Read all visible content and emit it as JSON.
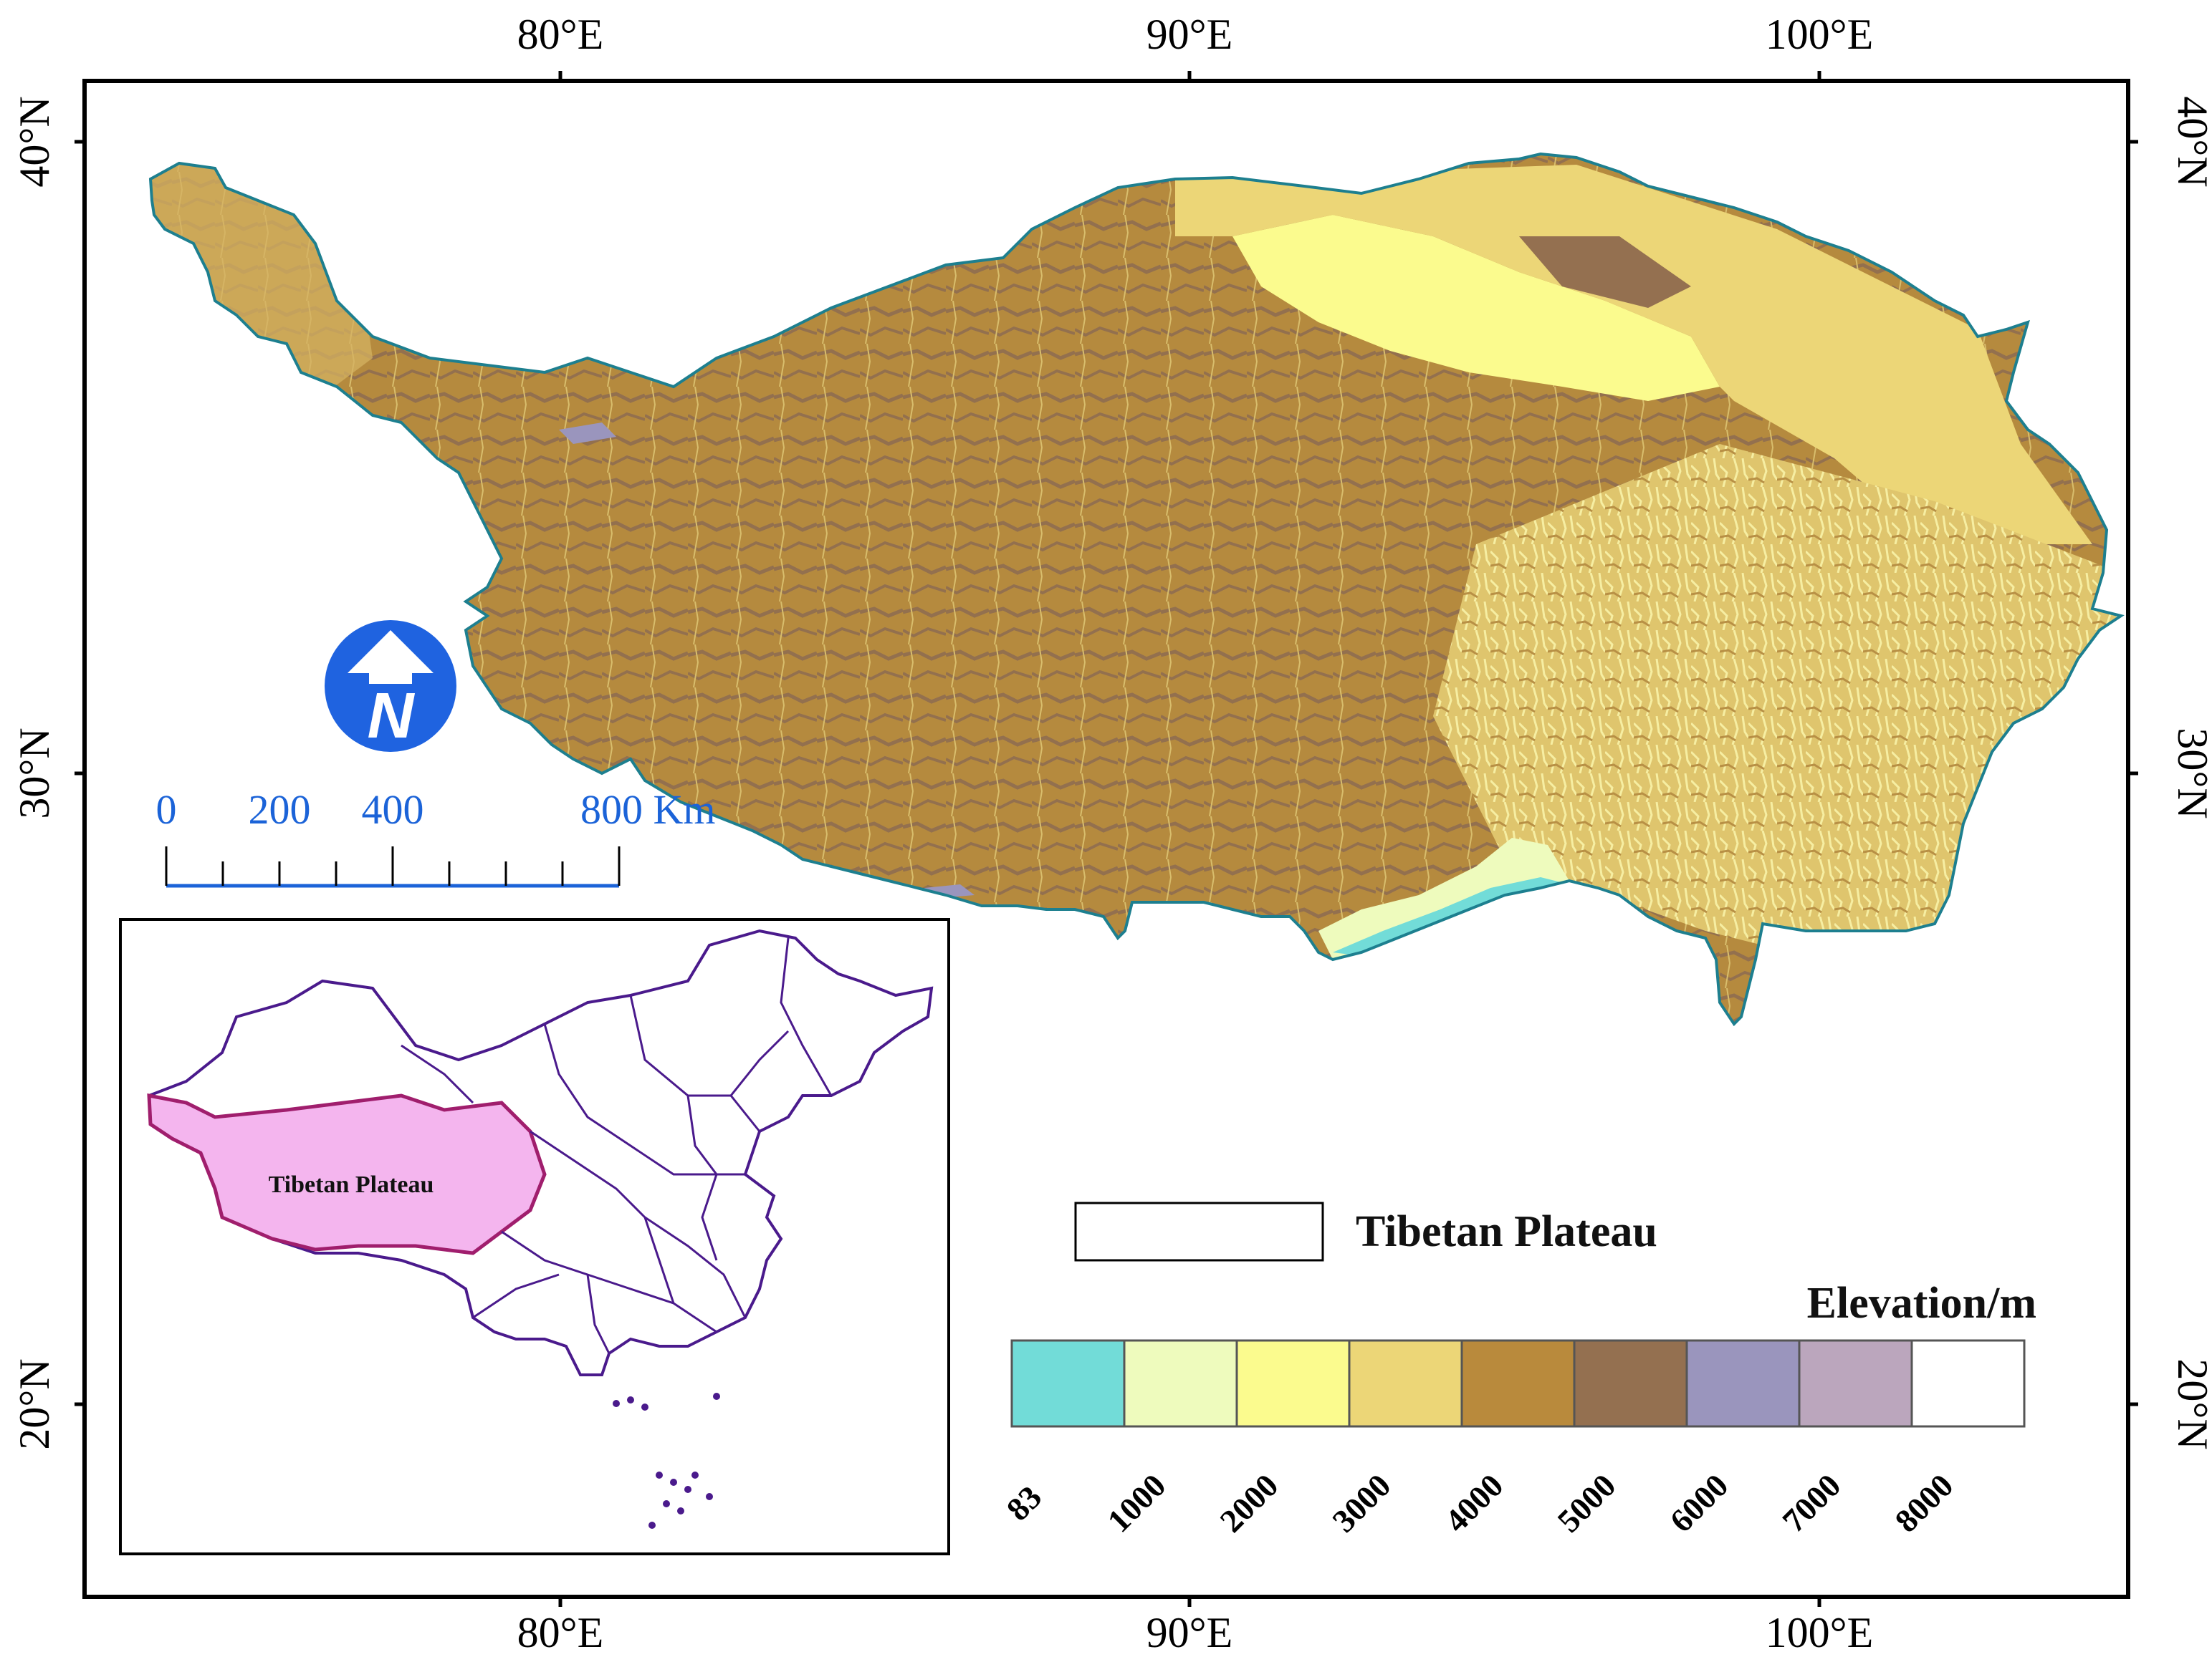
{
  "axes": {
    "lon_labels": [
      "80°E",
      "90°E",
      "100°E"
    ],
    "lat_labels": [
      "40°N",
      "30°N",
      "20°N"
    ]
  },
  "scale_bar": {
    "labels": [
      "0",
      "200",
      "400",
      "800 Km"
    ],
    "color": "#1b63d8"
  },
  "north_arrow": {
    "letter": "N",
    "icon": "north-arrow-icon",
    "color": "#1f63e0"
  },
  "inset": {
    "region_label": "Tibetan Plateau",
    "region_fill": "#f4b5ee",
    "boundary_color": "#4a1a8c"
  },
  "legend": {
    "region_label": "Tibetan Plateau",
    "elevation_title": "Elevation/m",
    "classes": [
      {
        "color": "#72dcd8"
      },
      {
        "color": "#eefbbd"
      },
      {
        "color": "#fbfb8e"
      },
      {
        "color": "#ecd677"
      },
      {
        "color": "#b98a3c"
      },
      {
        "color": "#947050"
      },
      {
        "color": "#9a95bd"
      },
      {
        "color": "#bba6bd"
      },
      {
        "color": "#ffffff"
      }
    ],
    "ticks": [
      "83",
      "1000",
      "2000",
      "3000",
      "4000",
      "5000",
      "6000",
      "7000",
      "8000"
    ]
  }
}
